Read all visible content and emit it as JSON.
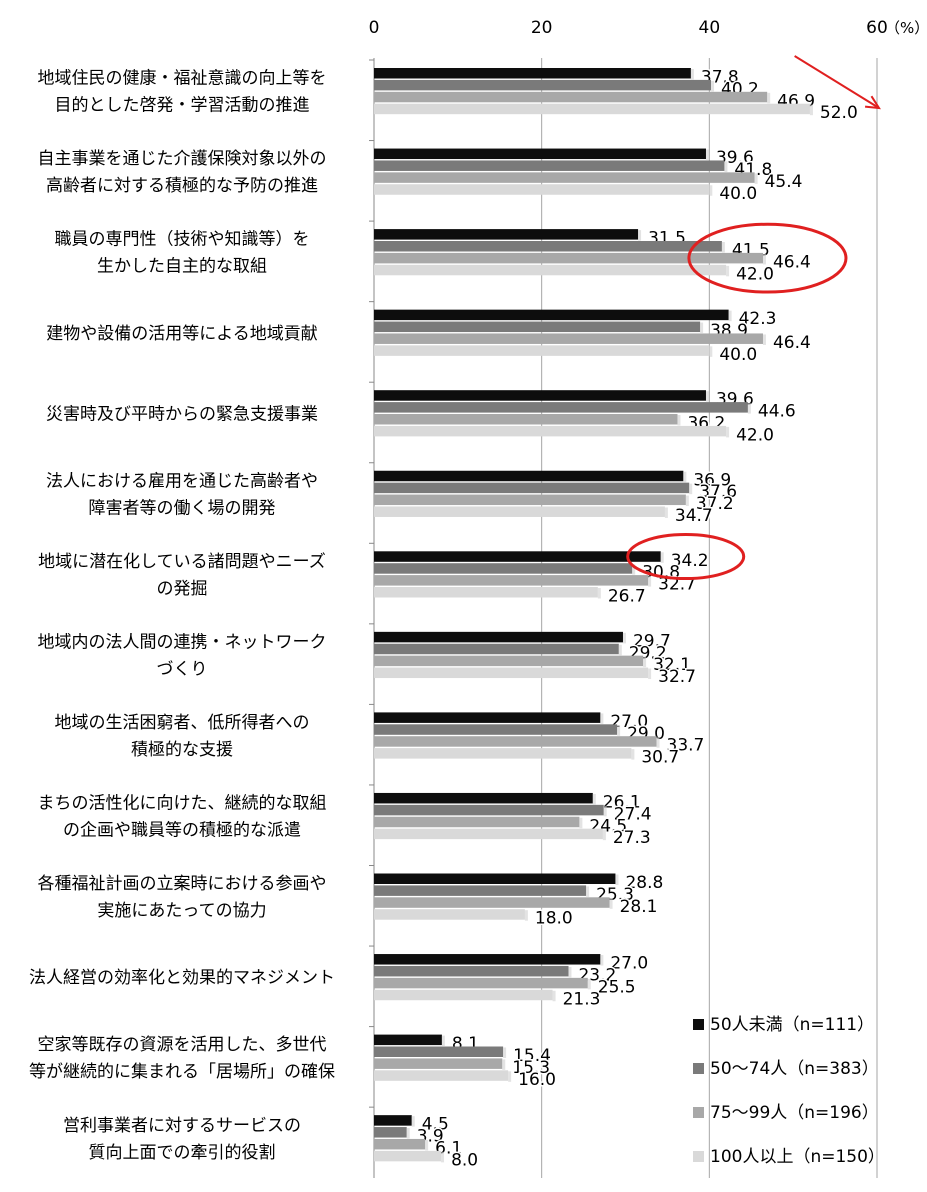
{
  "chart_data": {
    "type": "bar",
    "orientation": "horizontal",
    "unit": "（%）",
    "xlim": [
      0,
      60
    ],
    "xticks": [
      "0",
      "20",
      "40",
      "60"
    ],
    "grid": true,
    "legend_position": "bottom-right",
    "categories": [
      [
        "地域住民の健康・福祉意識の向上等を",
        "目的とした啓発・学習活動の推進"
      ],
      [
        "自主事業を通じた介護保険対象以外の",
        "高齢者に対する積極的な予防の推進"
      ],
      [
        "職員の専門性（技術や知識等）を",
        "生かした自主的な取組"
      ],
      [
        "建物や設備の活用等による地域貢献"
      ],
      [
        "災害時及び平時からの緊急支援事業"
      ],
      [
        "法人における雇用を通じた高齢者や",
        "障害者等の働く場の開発"
      ],
      [
        "地域に潜在化している諸問題やニーズ",
        "の発掘"
      ],
      [
        "地域内の法人間の連携・ネットワーク",
        "づくり"
      ],
      [
        "地域の生活困窮者、低所得者への",
        "積極的な支援"
      ],
      [
        "まちの活性化に向けた、継続的な取組",
        "の企画や職員等の積極的な派遣"
      ],
      [
        "各種福祉計画の立案時における参画や",
        "実施にあたっての協力"
      ],
      [
        "法人経営の効率化と効果的マネジメント"
      ],
      [
        "空家等既存の資源を活用した、多世代",
        "等が継続的に集まれる「居場所」の確保"
      ],
      [
        "営利事業者に対するサービスの",
        "質向上面での牽引的役割"
      ]
    ],
    "series": [
      {
        "name": "50人未満（n=111）",
        "color": "#0d0d0d",
        "values": [
          37.8,
          39.6,
          31.5,
          42.3,
          39.6,
          36.9,
          34.2,
          29.7,
          27.0,
          26.1,
          28.8,
          27.0,
          8.1,
          4.5
        ],
        "labels": [
          "37.8",
          "39.6",
          "31.5",
          "42.3",
          "39.6",
          "36.9",
          "34.2",
          "29.7",
          "27.0",
          "26.1",
          "28.8",
          "27.0",
          "8.1",
          "4.5"
        ]
      },
      {
        "name": "50～74人（n=383）",
        "color": "#7a7a7a",
        "values": [
          40.2,
          41.8,
          41.5,
          38.9,
          44.6,
          37.6,
          30.8,
          29.2,
          29.0,
          27.4,
          25.3,
          23.2,
          15.4,
          3.9
        ],
        "labels": [
          "40.2",
          "41.8",
          "41.5",
          "38.9",
          "44.6",
          "37.6",
          "30.8",
          "29.2",
          "29.0",
          "27.4",
          "25.3",
          "23.2",
          "15.4",
          "3.9"
        ]
      },
      {
        "name": "75～99人（n=196）",
        "color": "#a8a8a8",
        "values": [
          46.9,
          45.4,
          46.4,
          46.4,
          36.2,
          37.2,
          32.7,
          32.1,
          33.7,
          24.5,
          28.1,
          25.5,
          15.3,
          6.1
        ],
        "labels": [
          "46.9",
          "45.4",
          "46.4",
          "46.4",
          "36.2",
          "37.2",
          "32.7",
          "32.1",
          "33.7",
          "24.5",
          "28.1",
          "25.5",
          "15.3",
          "6.1"
        ]
      },
      {
        "name": "100人以上（n=150）",
        "color": "#d9d9d9",
        "values": [
          52.0,
          40.0,
          42.0,
          40.0,
          42.0,
          34.7,
          26.7,
          32.7,
          30.7,
          27.3,
          18.0,
          21.3,
          16.0,
          8.0
        ],
        "labels": [
          "52.0",
          "40.0",
          "42.0",
          "40.0",
          "42.0",
          "34.7",
          "26.7",
          "32.7",
          "30.7",
          "27.3",
          "18.0",
          "21.3",
          "16.0",
          "8.0"
        ]
      }
    ],
    "annotations": {
      "highlight_color": "#e02020",
      "circles": [
        {
          "category_index": 2,
          "series": [
            1,
            2,
            3
          ]
        },
        {
          "category_index": 6,
          "series": [
            0
          ]
        }
      ],
      "arrow": {
        "from_x_value": 46,
        "to_x_value": 60,
        "category_index": 0
      }
    }
  }
}
